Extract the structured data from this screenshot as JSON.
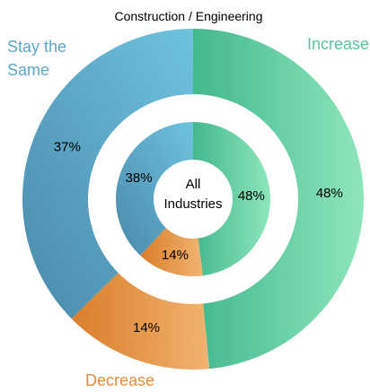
{
  "chart_data": {
    "type": "pie",
    "title": "Construction / Engineering",
    "center_label": "All Industries",
    "category_labels": {
      "increase": "Increase",
      "stay_the_same": "Stay the Same",
      "decrease": "Decrease"
    },
    "colors": {
      "increase_start": "#44b88e",
      "increase_end": "#8ee6bb",
      "stay_start": "#4a89aa",
      "stay_end": "#6ec3df",
      "decrease_start": "#d97d2a",
      "decrease_end": "#f2b470",
      "increase_text": "#56c49b",
      "stay_text": "#5ba7c8",
      "decrease_text": "#e58c34"
    },
    "rings": [
      {
        "name": "Construction / Engineering",
        "slices": [
          {
            "category": "increase",
            "value": 48,
            "label": "48%"
          },
          {
            "category": "decrease",
            "value": 14,
            "label": "14%"
          },
          {
            "category": "stay_the_same",
            "value": 37,
            "label": "37%"
          }
        ]
      },
      {
        "name": "All Industries",
        "slices": [
          {
            "category": "increase",
            "value": 48,
            "label": "48%"
          },
          {
            "category": "decrease",
            "value": 14,
            "label": "14%"
          },
          {
            "category": "stay_the_same",
            "value": 38,
            "label": "38%"
          }
        ]
      }
    ]
  }
}
